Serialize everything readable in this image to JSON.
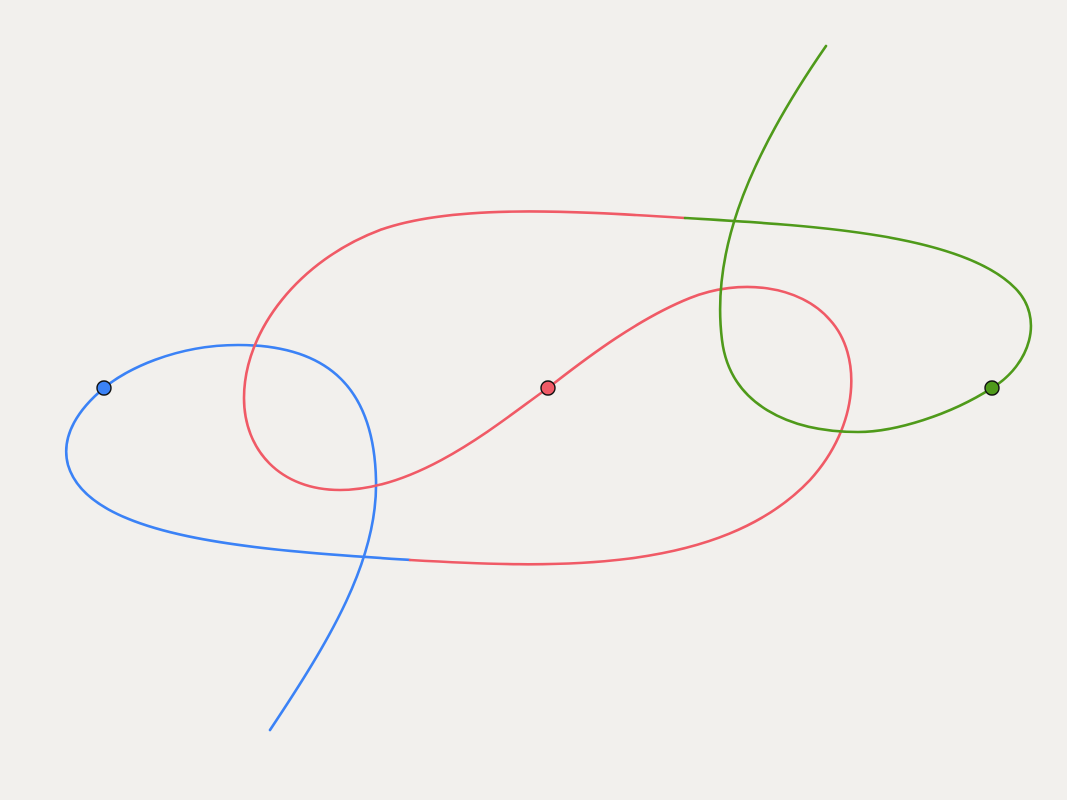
{
  "diagram": {
    "background": "#f2f0ed",
    "curves": [
      {
        "id": "blue",
        "color": "#3b82f6"
      },
      {
        "id": "red",
        "color": "#f05a66"
      },
      {
        "id": "green",
        "color": "#4f9a1a"
      }
    ],
    "nodes": [
      {
        "id": "blue",
        "color": "#3b82f6"
      },
      {
        "id": "red",
        "color": "#f05a66"
      },
      {
        "id": "green",
        "color": "#4f9a1a"
      }
    ]
  }
}
